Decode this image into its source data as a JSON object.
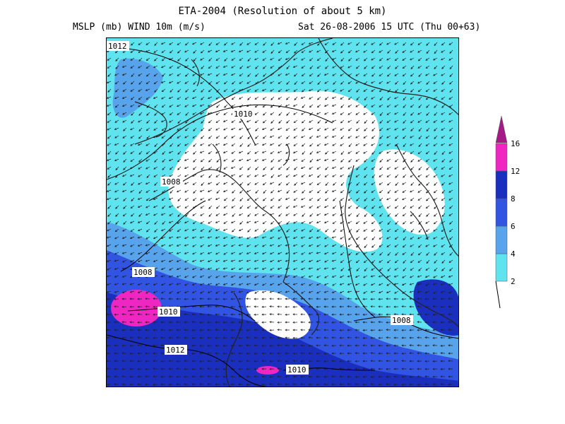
{
  "header": {
    "title": "ETA-2004 (Resolution of about 5 km)",
    "left_label": "MSLP (mb)  WIND 10m (m/s)",
    "right_label": "Sat 26-08-2006 15 UTC (Thu 00+63)"
  },
  "legend": {
    "labels": [
      "2",
      "4",
      "6",
      "8",
      "12",
      "16"
    ],
    "colors": [
      "#5fe3ee",
      "#57a3ec",
      "#3254e3",
      "#1a2fbe",
      "#ee27c2",
      "#a41a86"
    ]
  },
  "isobars": [
    "1012",
    "1010",
    "1008",
    "1008",
    "1010",
    "1012",
    "1008",
    "1010"
  ],
  "colors": {
    "land_outline": "#222222",
    "isobar_line": "#000000",
    "background_calm": "#ffffff"
  }
}
